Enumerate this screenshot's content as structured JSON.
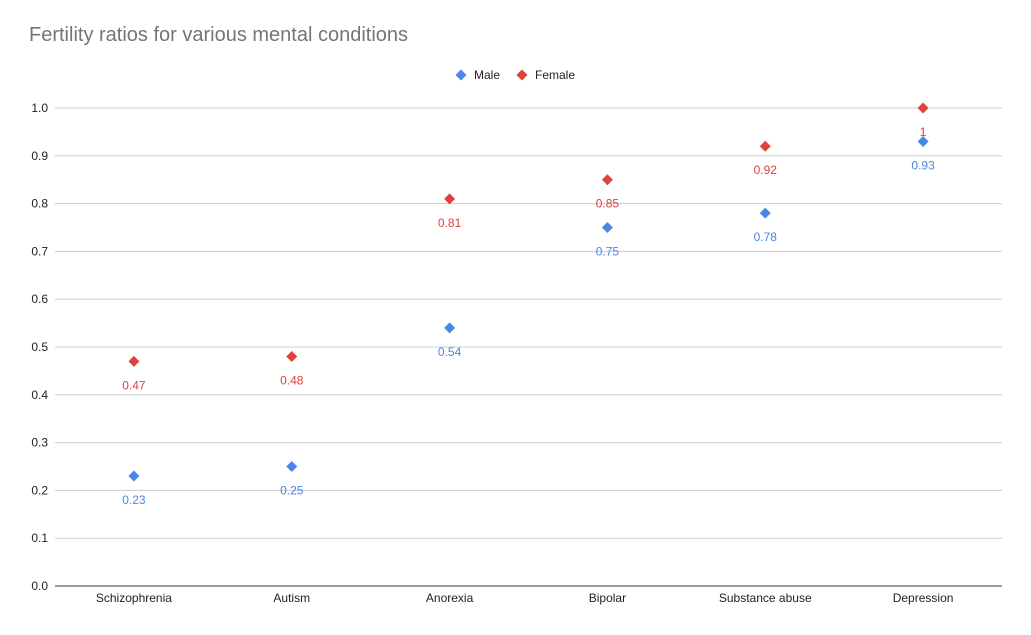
{
  "chart_data": {
    "type": "scatter",
    "title": "Fertility ratios for various mental conditions",
    "xlabel": "",
    "ylabel": "",
    "categories": [
      "Schizophrenia",
      "Autism",
      "Anorexia",
      "Bipolar",
      "Substance abuse",
      "Depression"
    ],
    "ylim": [
      0,
      1
    ],
    "yticks": [
      "0.0",
      "0.1",
      "0.2",
      "0.3",
      "0.4",
      "0.5",
      "0.6",
      "0.7",
      "0.8",
      "0.9",
      "1.0"
    ],
    "grid": true,
    "legend_position": "top-center",
    "series": [
      {
        "name": "Male",
        "color": "#4a86e8",
        "values": [
          0.23,
          0.25,
          0.54,
          0.75,
          0.78,
          0.93
        ],
        "labels": [
          "0.23",
          "0.25",
          "0.54",
          "0.75",
          "0.78",
          "0.93"
        ]
      },
      {
        "name": "Female",
        "color": "#e0413a",
        "values": [
          0.47,
          0.48,
          0.81,
          0.85,
          0.92,
          1.0
        ],
        "labels": [
          "0.47",
          "0.48",
          "0.81",
          "0.85",
          "0.92",
          "1"
        ]
      }
    ]
  }
}
